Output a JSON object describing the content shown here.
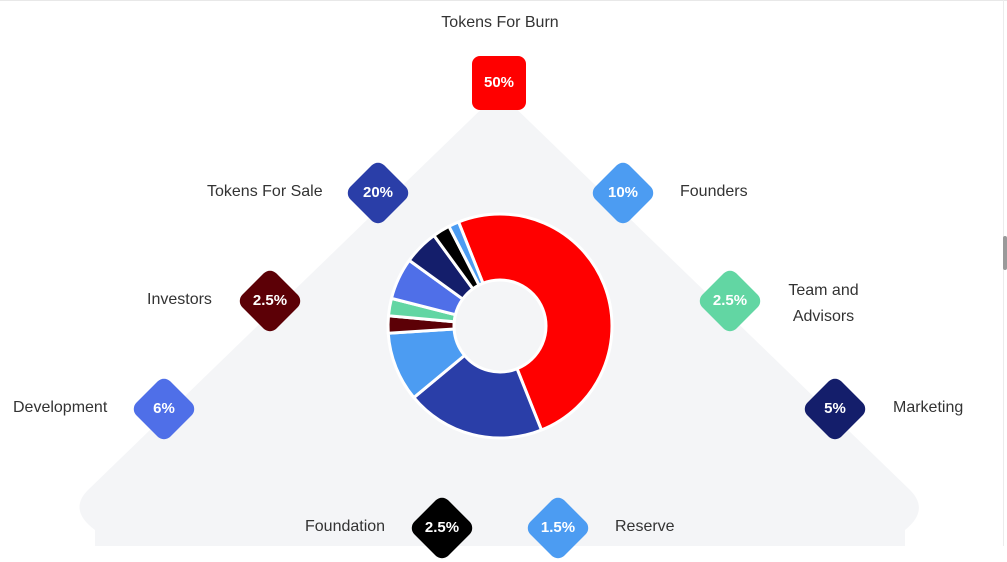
{
  "chart_data": {
    "type": "donut",
    "slices": [
      {
        "label": "Tokens For Burn",
        "value": 50,
        "value_label": "50%",
        "color": "#ff0000"
      },
      {
        "label": "Tokens For Sale",
        "value": 20,
        "value_label": "20%",
        "color": "#2a3ea8"
      },
      {
        "label": "Founders",
        "value": 10,
        "value_label": "10%",
        "color": "#4c9cf2"
      },
      {
        "label": "Investors",
        "value": 2.5,
        "value_label": "2.5%",
        "color": "#5c0006"
      },
      {
        "label": "Team and Advisors",
        "value": 2.5,
        "value_label": "2.5%",
        "color": "#62d6a3"
      },
      {
        "label": "Development",
        "value": 6,
        "value_label": "6%",
        "color": "#4f6fe8"
      },
      {
        "label": "Marketing",
        "value": 5,
        "value_label": "5%",
        "color": "#141e6b"
      },
      {
        "label": "Foundation",
        "value": 2.5,
        "value_label": "2.5%",
        "color": "#000000"
      },
      {
        "label": "Reserve",
        "value": 1.5,
        "value_label": "1.5%",
        "color": "#4c9cf2"
      }
    ]
  },
  "colors": {
    "background_triangle": "#f4f5f7",
    "label_text": "#333333",
    "badge_text": "#ffffff"
  }
}
